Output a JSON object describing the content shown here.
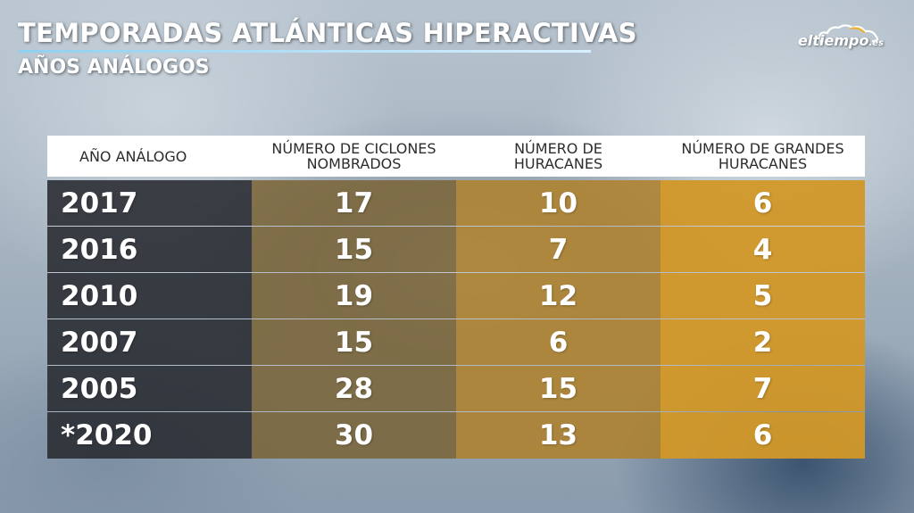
{
  "header": {
    "title": "TEMPORADAS ATLÁNTICAS HIPERACTIVAS",
    "subtitle": "AÑOS ANÁLOGOS"
  },
  "logo": {
    "name": "eltiempo",
    "suffix": ".es",
    "icon": "cloud-icon"
  },
  "colors": {
    "col_year": "#2a2c30",
    "col_named": "#786030",
    "col_hurricanes": "#af8028",
    "col_major": "#d29828"
  },
  "table": {
    "headers": [
      {
        "line1": "AÑO ANÁLOGO",
        "line2": ""
      },
      {
        "line1": "NÚMERO DE CICLONES",
        "line2": "NOMBRADOS"
      },
      {
        "line1": "NÚMERO DE",
        "line2": "HURACANES"
      },
      {
        "line1": "NÚMERO DE GRANDES",
        "line2": "HURACANES"
      }
    ],
    "rows": [
      {
        "year": "2017",
        "named": "17",
        "hurricanes": "10",
        "major": "6"
      },
      {
        "year": "2016",
        "named": "15",
        "hurricanes": "7",
        "major": "4"
      },
      {
        "year": "2010",
        "named": "19",
        "hurricanes": "12",
        "major": "5"
      },
      {
        "year": "2007",
        "named": "15",
        "hurricanes": "6",
        "major": "2"
      },
      {
        "year": "2005",
        "named": "28",
        "hurricanes": "15",
        "major": "7"
      },
      {
        "year": "*2020",
        "named": "30",
        "hurricanes": "13",
        "major": "6"
      }
    ]
  }
}
